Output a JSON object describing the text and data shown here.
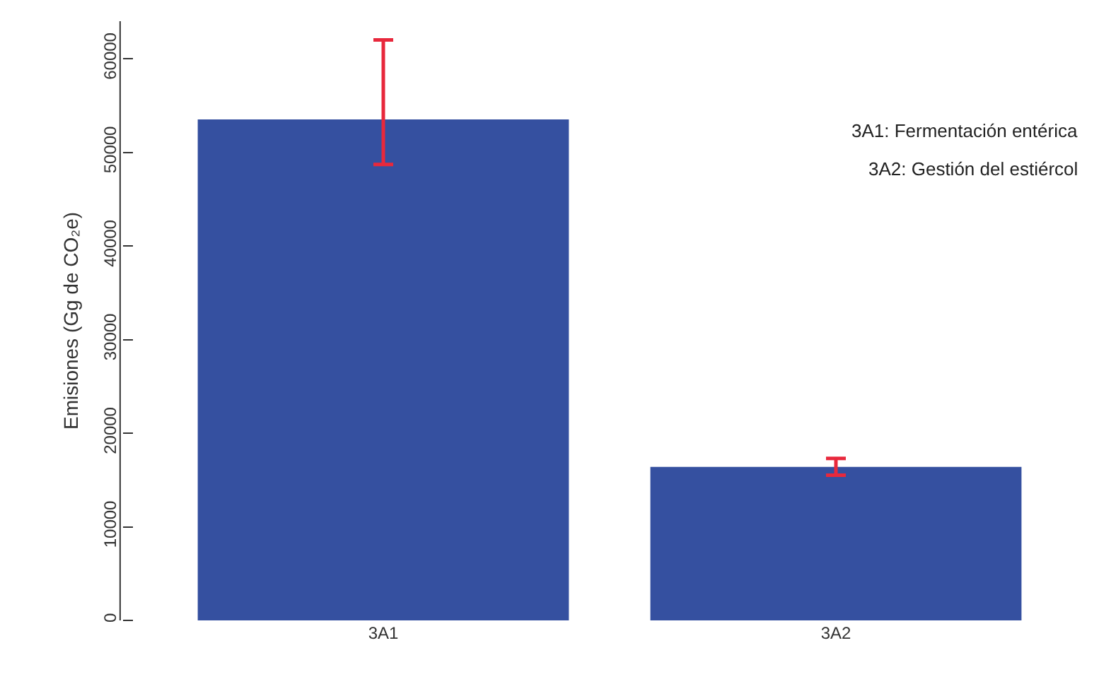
{
  "chart_data": {
    "type": "bar",
    "ylabel": "Emisiones (Gg de CO₂e)",
    "categories": [
      "3A1",
      "3A2"
    ],
    "series": [
      {
        "color": "#3550a0",
        "values": [
          53500,
          16400
        ],
        "errors": [
          [
            48700,
            62000
          ],
          [
            15500,
            17300
          ]
        ]
      }
    ],
    "ylim": [
      0,
      64000
    ],
    "yticks": [
      0,
      10000,
      20000,
      30000,
      40000,
      50000,
      60000
    ],
    "grid": false,
    "annotations": [
      "3A1: Fermentación entérica",
      "3A2: Gestión del estiércol"
    ]
  }
}
